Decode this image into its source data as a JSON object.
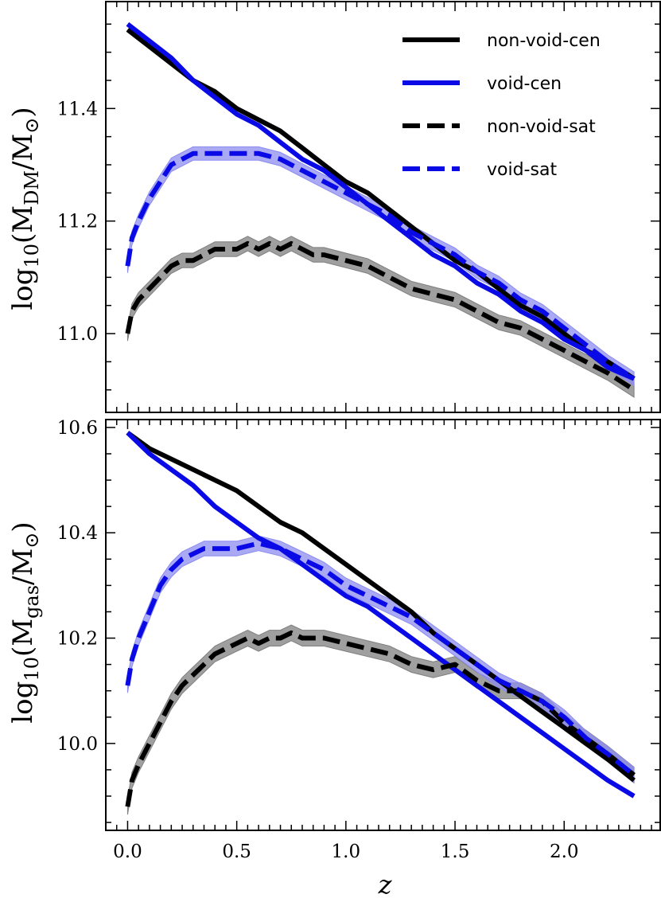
{
  "xlabel": "z",
  "legend": [
    {
      "label": "non-void-cen",
      "color": "#000000",
      "dash": false
    },
    {
      "label": "void-cen",
      "color": "#0a0ae6",
      "dash": false
    },
    {
      "label": "non-void-sat",
      "color": "#000000",
      "dash": true
    },
    {
      "label": "void-sat",
      "color": "#0a0ae6",
      "dash": true
    }
  ],
  "colors": {
    "black": "#000000",
    "blue": "#0a0ae6",
    "grey_band": "#7f7f7f",
    "blue_band": "#8c8cf0"
  },
  "chart_data": [
    {
      "type": "line",
      "ylabel": "log10(M_DM / M_sun)",
      "xlim": [
        -0.1,
        2.44
      ],
      "ylim": [
        10.86,
        11.59
      ],
      "xticks": [
        "0.0",
        "0.5",
        "1.0",
        "1.5",
        "2.0"
      ],
      "yticks": [
        "11.0",
        "11.2",
        "11.4"
      ],
      "legend_location": "top-right",
      "series": [
        {
          "name": "non-void-cen",
          "style": "solid",
          "color": "#000000",
          "x": [
            0.0,
            0.1,
            0.2,
            0.3,
            0.4,
            0.5,
            0.6,
            0.7,
            0.8,
            0.9,
            1.0,
            1.1,
            1.2,
            1.3,
            1.4,
            1.5,
            1.6,
            1.7,
            1.8,
            1.9,
            2.0,
            2.1,
            2.2,
            2.32
          ],
          "y": [
            11.54,
            11.51,
            11.48,
            11.45,
            11.43,
            11.4,
            11.38,
            11.36,
            11.33,
            11.3,
            11.27,
            11.25,
            11.22,
            11.19,
            11.16,
            11.13,
            11.11,
            11.08,
            11.05,
            11.03,
            11.0,
            10.97,
            10.95,
            10.92
          ]
        },
        {
          "name": "void-cen",
          "style": "solid",
          "color": "#0a0ae6",
          "x": [
            0.0,
            0.1,
            0.2,
            0.3,
            0.4,
            0.5,
            0.6,
            0.7,
            0.8,
            0.9,
            1.0,
            1.1,
            1.2,
            1.3,
            1.4,
            1.5,
            1.6,
            1.7,
            1.8,
            1.9,
            2.0,
            2.1,
            2.2,
            2.32
          ],
          "y": [
            11.55,
            11.52,
            11.49,
            11.45,
            11.42,
            11.39,
            11.37,
            11.34,
            11.31,
            11.29,
            11.26,
            11.23,
            11.2,
            11.17,
            11.14,
            11.12,
            11.09,
            11.07,
            11.04,
            11.02,
            10.99,
            10.97,
            10.94,
            10.92
          ]
        },
        {
          "name": "non-void-sat",
          "style": "dashed",
          "color": "#000000",
          "x": [
            0.0,
            0.02,
            0.05,
            0.1,
            0.15,
            0.2,
            0.25,
            0.3,
            0.35,
            0.4,
            0.45,
            0.5,
            0.55,
            0.6,
            0.65,
            0.7,
            0.75,
            0.8,
            0.85,
            0.9,
            1.0,
            1.1,
            1.2,
            1.3,
            1.4,
            1.5,
            1.6,
            1.7,
            1.8,
            1.9,
            2.0,
            2.1,
            2.2,
            2.32
          ],
          "y": [
            11.0,
            11.04,
            11.06,
            11.08,
            11.1,
            11.12,
            11.13,
            11.13,
            11.14,
            11.15,
            11.15,
            11.15,
            11.16,
            11.15,
            11.16,
            11.15,
            11.16,
            11.15,
            11.14,
            11.14,
            11.13,
            11.12,
            11.1,
            11.08,
            11.07,
            11.06,
            11.04,
            11.02,
            11.01,
            10.99,
            10.97,
            10.95,
            10.93,
            10.9
          ]
        },
        {
          "name": "void-sat",
          "style": "dashed",
          "color": "#0a0ae6",
          "x": [
            0.0,
            0.02,
            0.05,
            0.1,
            0.15,
            0.2,
            0.25,
            0.3,
            0.35,
            0.4,
            0.5,
            0.6,
            0.7,
            0.8,
            0.9,
            1.0,
            1.1,
            1.2,
            1.3,
            1.4,
            1.5,
            1.6,
            1.7,
            1.8,
            1.9,
            2.0,
            2.1,
            2.2,
            2.32
          ],
          "y": [
            11.12,
            11.17,
            11.2,
            11.24,
            11.27,
            11.3,
            11.31,
            11.32,
            11.32,
            11.32,
            11.32,
            11.32,
            11.31,
            11.29,
            11.27,
            11.25,
            11.23,
            11.21,
            11.18,
            11.16,
            11.14,
            11.11,
            11.09,
            11.06,
            11.04,
            11.01,
            10.98,
            10.95,
            10.92
          ]
        }
      ]
    },
    {
      "type": "line",
      "ylabel": "log10(M_gas / M_sun)",
      "xlim": [
        -0.1,
        2.44
      ],
      "ylim": [
        9.835,
        10.615
      ],
      "xticks": [
        "0.0",
        "0.5",
        "1.0",
        "1.5",
        "2.0"
      ],
      "yticks": [
        "10.0",
        "10.2",
        "10.4",
        "10.6"
      ],
      "series": [
        {
          "name": "non-void-cen",
          "style": "solid",
          "color": "#000000",
          "x": [
            0.0,
            0.1,
            0.2,
            0.3,
            0.4,
            0.5,
            0.6,
            0.7,
            0.8,
            0.9,
            1.0,
            1.1,
            1.2,
            1.3,
            1.4,
            1.5,
            1.6,
            1.7,
            1.8,
            1.9,
            2.0,
            2.1,
            2.2,
            2.32
          ],
          "y": [
            10.59,
            10.56,
            10.54,
            10.52,
            10.5,
            10.48,
            10.45,
            10.42,
            10.4,
            10.37,
            10.34,
            10.31,
            10.28,
            10.25,
            10.21,
            10.18,
            10.15,
            10.12,
            10.09,
            10.06,
            10.03,
            10.0,
            9.97,
            9.93
          ]
        },
        {
          "name": "void-cen",
          "style": "solid",
          "color": "#0a0ae6",
          "x": [
            0.0,
            0.1,
            0.2,
            0.3,
            0.4,
            0.5,
            0.6,
            0.7,
            0.8,
            0.9,
            1.0,
            1.1,
            1.2,
            1.3,
            1.4,
            1.5,
            1.6,
            1.7,
            1.8,
            1.9,
            2.0,
            2.1,
            2.2,
            2.32
          ],
          "y": [
            10.59,
            10.55,
            10.52,
            10.49,
            10.45,
            10.42,
            10.39,
            10.37,
            10.34,
            10.31,
            10.28,
            10.26,
            10.23,
            10.2,
            10.17,
            10.14,
            10.11,
            10.08,
            10.05,
            10.02,
            9.99,
            9.96,
            9.93,
            9.9
          ]
        },
        {
          "name": "non-void-sat",
          "style": "dashed",
          "color": "#000000",
          "x": [
            0.0,
            0.02,
            0.05,
            0.1,
            0.15,
            0.2,
            0.25,
            0.3,
            0.35,
            0.4,
            0.45,
            0.5,
            0.55,
            0.6,
            0.65,
            0.7,
            0.75,
            0.8,
            0.85,
            0.9,
            1.0,
            1.1,
            1.2,
            1.3,
            1.4,
            1.5,
            1.6,
            1.7,
            1.8,
            1.9,
            2.0,
            2.1,
            2.2,
            2.32
          ],
          "y": [
            9.88,
            9.93,
            9.96,
            10.0,
            10.04,
            10.08,
            10.11,
            10.13,
            10.15,
            10.17,
            10.18,
            10.19,
            10.2,
            10.19,
            10.2,
            10.2,
            10.21,
            10.2,
            10.2,
            10.2,
            10.19,
            10.18,
            10.17,
            10.15,
            10.14,
            10.15,
            10.12,
            10.1,
            10.1,
            10.08,
            10.04,
            10.01,
            9.98,
            9.94
          ]
        },
        {
          "name": "void-sat",
          "style": "dashed",
          "color": "#0a0ae6",
          "x": [
            0.0,
            0.02,
            0.05,
            0.1,
            0.15,
            0.2,
            0.25,
            0.3,
            0.35,
            0.4,
            0.5,
            0.6,
            0.7,
            0.8,
            0.9,
            1.0,
            1.1,
            1.2,
            1.3,
            1.4,
            1.5,
            1.6,
            1.7,
            1.8,
            1.9,
            2.0,
            2.1,
            2.2,
            2.32
          ],
          "y": [
            10.11,
            10.16,
            10.2,
            10.25,
            10.3,
            10.33,
            10.35,
            10.36,
            10.37,
            10.37,
            10.37,
            10.38,
            10.37,
            10.35,
            10.33,
            10.3,
            10.28,
            10.26,
            10.24,
            10.21,
            10.18,
            10.15,
            10.12,
            10.1,
            10.08,
            10.05,
            10.01,
            9.98,
            9.94
          ]
        }
      ]
    }
  ]
}
